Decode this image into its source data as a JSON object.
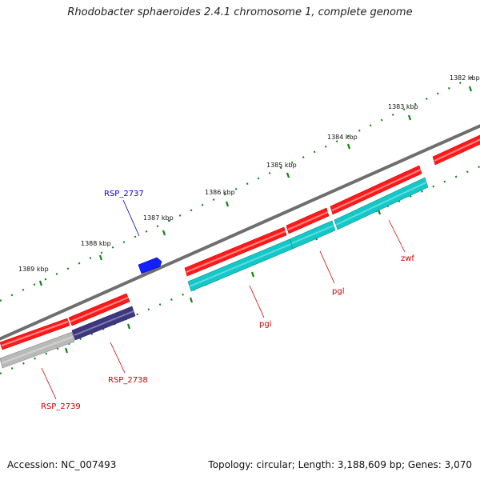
{
  "title": "Rhodobacter sphaeroides 2.4.1 chromosome 1, complete genome",
  "footer": {
    "accession": "Accession: NC_007493",
    "summary": "Topology: circular; Length: 3,188,609 bp; Genes: 3,070"
  },
  "colors": {
    "backbone": "#7a7a7a",
    "forward_gene": "#ff0000",
    "forward_gene_highlight": "#ff8080",
    "reverse_gene_cyan": "#12c8c8",
    "reverse_gene_purple": "#3d3780",
    "reverse_gene_gray": "#b8b8b8",
    "small_gene_blue": "#0a14ff",
    "tick_dots": "#148214",
    "label_red": "#cc0000",
    "label_blue": "#0000cc"
  },
  "kbp_ticks": [
    "1382 kbp",
    "1383 kbp",
    "1384 kbp",
    "1385 kbp",
    "1386 kbp",
    "1387 kbp",
    "1388 kbp",
    "1389 kbp"
  ],
  "gene_labels": [
    {
      "id": "rsp2737",
      "text": "RSP_2737",
      "color": "#0000cc"
    },
    {
      "id": "zwf",
      "text": "zwf",
      "color": "#cc0000"
    },
    {
      "id": "pgl",
      "text": "pgl",
      "color": "#cc0000"
    },
    {
      "id": "pgi",
      "text": "pgi",
      "color": "#cc0000"
    },
    {
      "id": "rsp2738",
      "text": "RSP_2738",
      "color": "#cc0000"
    },
    {
      "id": "rsp2739",
      "text": "RSP_2739",
      "color": "#cc0000"
    }
  ]
}
